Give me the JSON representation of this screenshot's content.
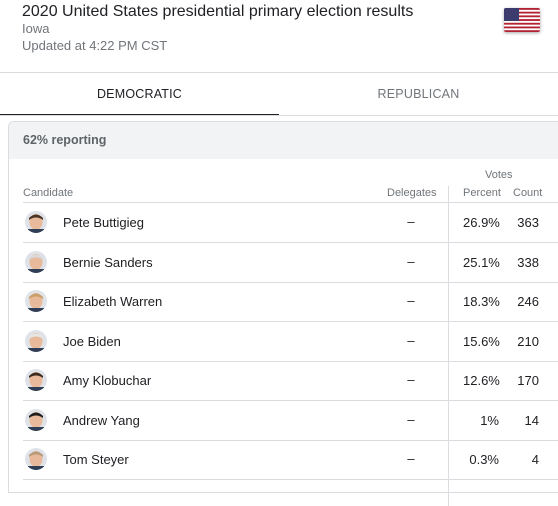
{
  "header": {
    "title": "2020 United States presidential primary election results",
    "subtitle": "Iowa",
    "updated": "Updated at 4:22 PM CST"
  },
  "tabs": [
    {
      "label": "DEMOCRATIC",
      "selected": true
    },
    {
      "label": "REPUBLICAN",
      "selected": false
    }
  ],
  "reporting": "62% reporting",
  "columns": {
    "votes": "Votes",
    "candidate": "Candidate",
    "delegates": "Delegates",
    "percent": "Percent",
    "count": "Count"
  },
  "candidates": [
    {
      "name": "Pete Buttigieg",
      "delegates": "–",
      "percent": "26.9%",
      "count": "363"
    },
    {
      "name": "Bernie Sanders",
      "delegates": "–",
      "percent": "25.1%",
      "count": "338"
    },
    {
      "name": "Elizabeth Warren",
      "delegates": "–",
      "percent": "18.3%",
      "count": "246"
    },
    {
      "name": "Joe Biden",
      "delegates": "–",
      "percent": "15.6%",
      "count": "210"
    },
    {
      "name": "Amy Klobuchar",
      "delegates": "–",
      "percent": "12.6%",
      "count": "170"
    },
    {
      "name": "Andrew Yang",
      "delegates": "–",
      "percent": "1%",
      "count": "14"
    },
    {
      "name": "Tom Steyer",
      "delegates": "–",
      "percent": "0.3%",
      "count": "4"
    }
  ],
  "colors": {
    "avatar_skin": "#e8b99a",
    "flag_red": "#b22234",
    "flag_blue": "#3c3b6e"
  }
}
